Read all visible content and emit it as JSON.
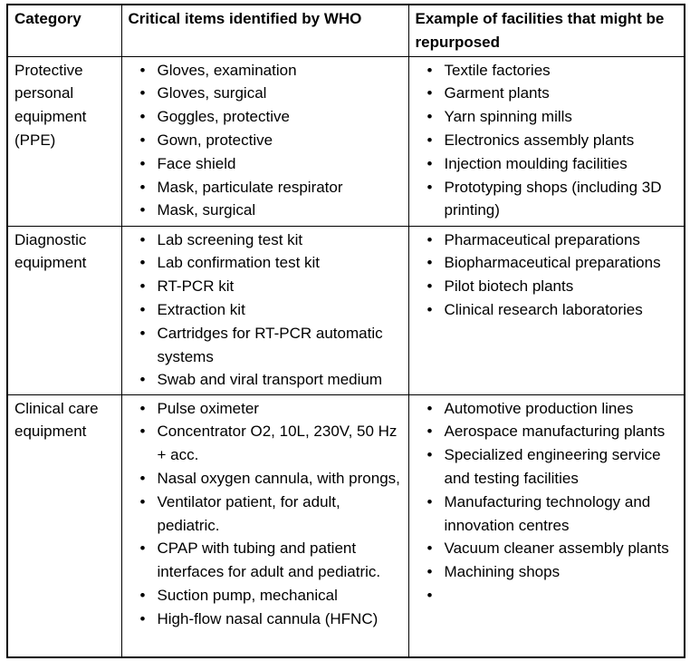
{
  "colors": {
    "border": "#000000",
    "text": "#000000",
    "background": "#ffffff"
  },
  "table": {
    "headers": {
      "category": "Category",
      "items": "Critical items identified by WHO",
      "facilities": "Example of facilities that might be repurposed"
    },
    "rows": [
      {
        "category": "Protective personal equipment (PPE)",
        "items": [
          "Gloves, examination",
          "Gloves, surgical",
          "Goggles, protective",
          "Gown, protective",
          "Face shield",
          "Mask, particulate respirator",
          "Mask, surgical"
        ],
        "facilities": [
          "Textile factories",
          "Garment plants",
          "Yarn spinning mills",
          "Electronics assembly plants",
          "Injection moulding facilities",
          "Prototyping shops (including 3D printing)"
        ]
      },
      {
        "category": "Diagnostic equipment",
        "items": [
          "Lab screening test kit",
          "Lab confirmation test kit",
          "RT-PCR kit",
          "Extraction kit",
          "Cartridges for RT-PCR automatic systems",
          "Swab and viral transport medium"
        ],
        "facilities": [
          "Pharmaceutical preparations",
          "Biopharmaceutical preparations",
          "Pilot biotech plants",
          "Clinical research laboratories"
        ]
      },
      {
        "category": "Clinical care equipment",
        "items": [
          "Pulse oximeter",
          "Concentrator O2, 10L, 230V, 50 Hz + acc.",
          "Nasal oxygen cannula, with prongs,",
          "Ventilator patient, for adult, pediatric.",
          "CPAP with tubing and patient interfaces for adult and pediatric.",
          "Suction pump, mechanical",
          "High-flow nasal cannula (HFNC)"
        ],
        "facilities": [
          "Automotive production lines",
          "Aerospace manufacturing plants",
          "Specialized engineering service and testing facilities",
          "Manufacturing technology and innovation centres",
          "Vacuum cleaner assembly plants",
          "Machining shops",
          ""
        ]
      }
    ]
  }
}
